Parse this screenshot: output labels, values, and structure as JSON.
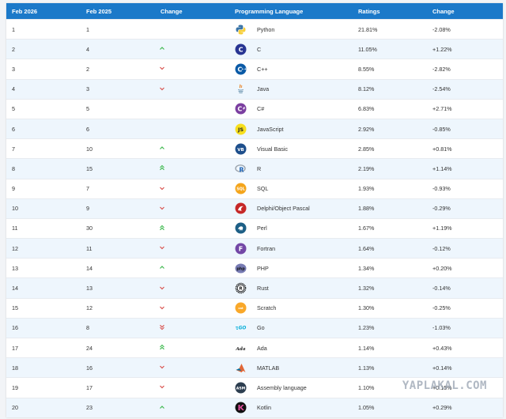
{
  "headers": [
    "Feb 2026",
    "Feb 2025",
    "Change",
    "Programming Language",
    "Ratings",
    "Change"
  ],
  "rows": [
    {
      "rank": "1",
      "prev": "1",
      "trend": "none",
      "icon": "python-logo-icon",
      "language": "Python",
      "rating": "21.81%",
      "delta": "-2.08%"
    },
    {
      "rank": "2",
      "prev": "4",
      "trend": "up",
      "icon": "c-logo-icon",
      "language": "C",
      "rating": "11.05%",
      "delta": "+1.22%"
    },
    {
      "rank": "3",
      "prev": "2",
      "trend": "down",
      "icon": "cpp-logo-icon",
      "language": "C++",
      "rating": "8.55%",
      "delta": "-2.82%"
    },
    {
      "rank": "4",
      "prev": "3",
      "trend": "down",
      "icon": "java-logo-icon",
      "language": "Java",
      "rating": "8.12%",
      "delta": "-2.54%"
    },
    {
      "rank": "5",
      "prev": "5",
      "trend": "none",
      "icon": "csharp-logo-icon",
      "language": "C#",
      "rating": "6.83%",
      "delta": "+2.71%"
    },
    {
      "rank": "6",
      "prev": "6",
      "trend": "none",
      "icon": "javascript-logo-icon",
      "language": "JavaScript",
      "rating": "2.92%",
      "delta": "-0.85%"
    },
    {
      "rank": "7",
      "prev": "10",
      "trend": "up",
      "icon": "visual-basic-logo-icon",
      "language": "Visual Basic",
      "rating": "2.85%",
      "delta": "+0.81%"
    },
    {
      "rank": "8",
      "prev": "15",
      "trend": "up2",
      "icon": "r-logo-icon",
      "language": "R",
      "rating": "2.19%",
      "delta": "+1.14%"
    },
    {
      "rank": "9",
      "prev": "7",
      "trend": "down",
      "icon": "sql-logo-icon",
      "language": "SQL",
      "rating": "1.93%",
      "delta": "-0.93%"
    },
    {
      "rank": "10",
      "prev": "9",
      "trend": "down",
      "icon": "delphi-logo-icon",
      "language": "Delphi/Object Pascal",
      "rating": "1.88%",
      "delta": "-0.29%"
    },
    {
      "rank": "11",
      "prev": "30",
      "trend": "up2",
      "icon": "perl-logo-icon",
      "language": "Perl",
      "rating": "1.67%",
      "delta": "+1.19%"
    },
    {
      "rank": "12",
      "prev": "11",
      "trend": "down",
      "icon": "fortran-logo-icon",
      "language": "Fortran",
      "rating": "1.64%",
      "delta": "-0.12%"
    },
    {
      "rank": "13",
      "prev": "14",
      "trend": "up",
      "icon": "php-logo-icon",
      "language": "PHP",
      "rating": "1.34%",
      "delta": "+0.20%"
    },
    {
      "rank": "14",
      "prev": "13",
      "trend": "down",
      "icon": "rust-logo-icon",
      "language": "Rust",
      "rating": "1.32%",
      "delta": "-0.14%"
    },
    {
      "rank": "15",
      "prev": "12",
      "trend": "down",
      "icon": "scratch-logo-icon",
      "language": "Scratch",
      "rating": "1.30%",
      "delta": "-0.25%"
    },
    {
      "rank": "16",
      "prev": "8",
      "trend": "down2",
      "icon": "go-logo-icon",
      "language": "Go",
      "rating": "1.23%",
      "delta": "-1.03%"
    },
    {
      "rank": "17",
      "prev": "24",
      "trend": "up2",
      "icon": "ada-logo-icon",
      "language": "Ada",
      "rating": "1.14%",
      "delta": "+0.43%"
    },
    {
      "rank": "18",
      "prev": "16",
      "trend": "down",
      "icon": "matlab-logo-icon",
      "language": "MATLAB",
      "rating": "1.13%",
      "delta": "+0.14%"
    },
    {
      "rank": "19",
      "prev": "17",
      "trend": "down",
      "icon": "assembly-logo-icon",
      "language": "Assembly language",
      "rating": "1.10%",
      "delta": "+0.15%"
    },
    {
      "rank": "20",
      "prev": "23",
      "trend": "up",
      "icon": "kotlin-logo-icon",
      "language": "Kotlin",
      "rating": "1.05%",
      "delta": "+0.29%"
    }
  ],
  "watermark": "YAPLAKAL.COM",
  "colors": {
    "header": "#1b79c9",
    "up": "#3fb950",
    "down": "#d9534f",
    "stripe": "#eef6fd"
  }
}
